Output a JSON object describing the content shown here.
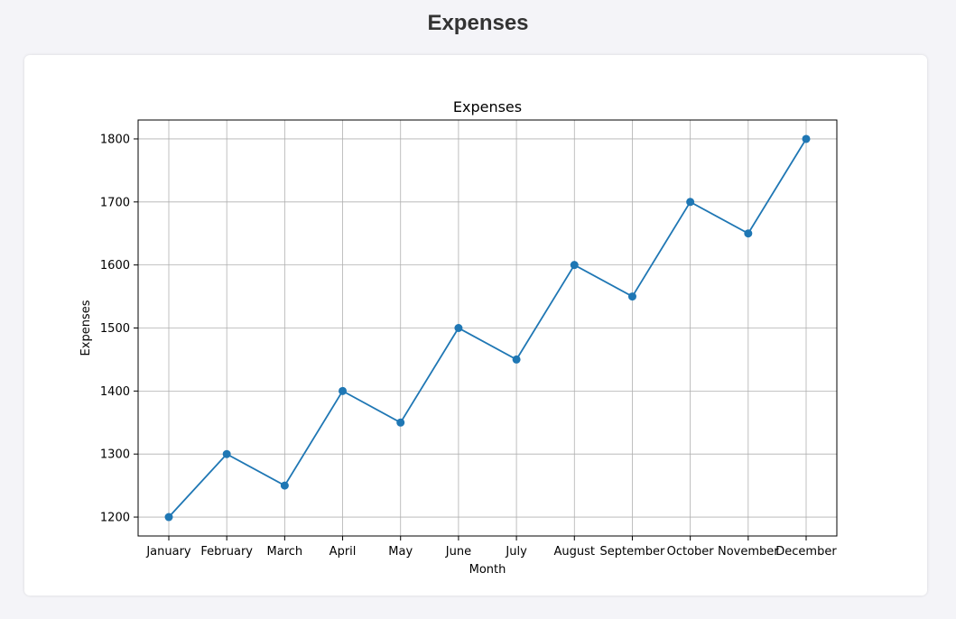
{
  "page": {
    "title": "Expenses"
  },
  "chart_data": {
    "type": "line",
    "title": "Expenses",
    "xlabel": "Month",
    "ylabel": "Expenses",
    "categories": [
      "January",
      "February",
      "March",
      "April",
      "May",
      "June",
      "July",
      "August",
      "September",
      "October",
      "November",
      "December"
    ],
    "series": [
      {
        "values": [
          1200,
          1300,
          1250,
          1400,
          1350,
          1500,
          1450,
          1600,
          1550,
          1700,
          1650,
          1800
        ],
        "color": "#1f77b4",
        "marker": "circle"
      }
    ],
    "yticks": [
      1200,
      1300,
      1400,
      1500,
      1600,
      1700,
      1800
    ],
    "ylim": [
      1170,
      1830
    ],
    "grid": true,
    "legend": "none"
  }
}
